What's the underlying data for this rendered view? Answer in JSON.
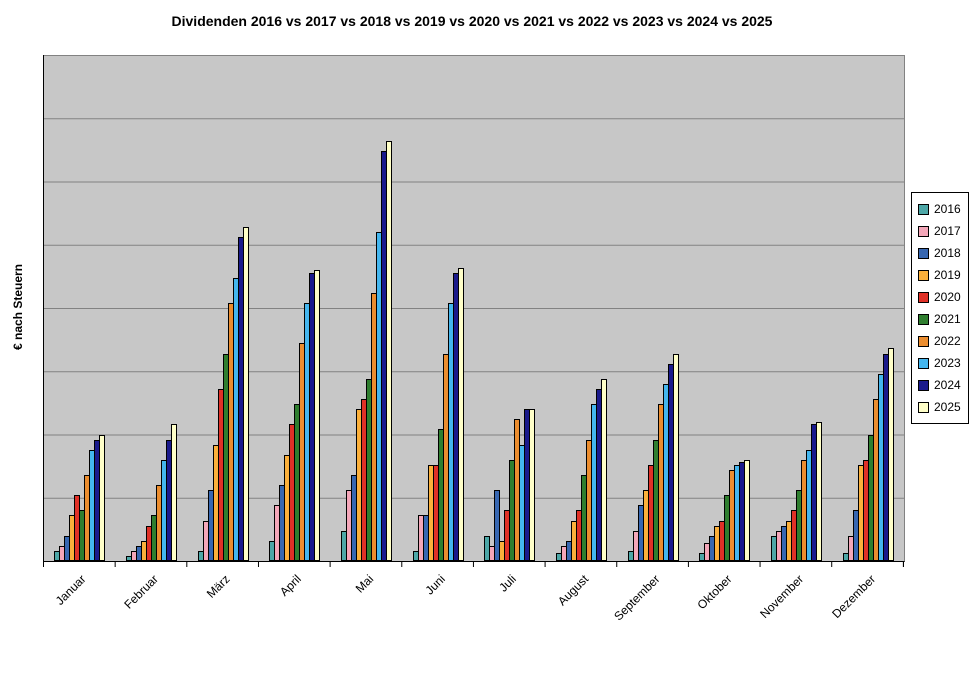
{
  "title": "Dividenden 2016 vs 2017 vs 2018 vs 2019 vs 2020 vs 2021 vs 2022 vs 2023 vs 2024 vs 2025",
  "y_axis_label": "€ nach Steuern",
  "chart_data": {
    "type": "bar",
    "title": "Dividenden 2016 vs 2017 vs 2018 vs 2019 vs 2020 vs 2021 vs 2022 vs 2023 vs 2024 vs 2025",
    "xlabel": "",
    "ylabel": "€ nach Steuern",
    "categories": [
      "Januar",
      "Februar",
      "März",
      "April",
      "Mai",
      "Juni",
      "Juli",
      "August",
      "September",
      "Oktober",
      "November",
      "Dezember"
    ],
    "series": [
      {
        "name": "2016",
        "color": "#4DA7A7",
        "values": [
          2,
          1,
          2,
          4,
          6,
          2,
          5,
          1.5,
          2,
          1.5,
          5,
          1.5
        ]
      },
      {
        "name": "2017",
        "color": "#F4A7B9",
        "values": [
          3,
          2,
          8,
          11,
          14,
          9,
          3,
          3,
          6,
          3.5,
          6,
          5
        ]
      },
      {
        "name": "2018",
        "color": "#3767B1",
        "values": [
          5,
          3,
          14,
          15,
          17,
          9,
          14,
          4,
          11,
          5,
          7,
          10
        ]
      },
      {
        "name": "2019",
        "color": "#FBB03B",
        "values": [
          9,
          4,
          23,
          21,
          30,
          19,
          4,
          8,
          14,
          7,
          8,
          19
        ]
      },
      {
        "name": "2020",
        "color": "#E03127",
        "values": [
          13,
          7,
          34,
          27,
          32,
          19,
          10,
          10,
          19,
          8,
          10,
          20
        ]
      },
      {
        "name": "2021",
        "color": "#2F7E2F",
        "values": [
          10,
          9,
          41,
          31,
          36,
          26,
          20,
          17,
          24,
          13,
          14,
          25
        ]
      },
      {
        "name": "2022",
        "color": "#EB8D2F",
        "values": [
          17,
          15,
          51,
          43,
          53,
          41,
          28,
          24,
          31,
          18,
          20,
          32
        ]
      },
      {
        "name": "2023",
        "color": "#44B6EE",
        "values": [
          22,
          20,
          56,
          51,
          65,
          51,
          23,
          31,
          35,
          19,
          22,
          37
        ]
      },
      {
        "name": "2024",
        "color": "#1A1A8C",
        "values": [
          24,
          24,
          64,
          57,
          81,
          57,
          30,
          34,
          39,
          19.5,
          27,
          41
        ]
      },
      {
        "name": "2025",
        "color": "#FFFFC8",
        "values": [
          25,
          27,
          66,
          57.5,
          83,
          58,
          30,
          36,
          41,
          20,
          27.5,
          42
        ]
      }
    ],
    "ylim": [
      0,
      100
    ],
    "y_tick_labels_visible": false,
    "gridline_count": 8,
    "grid": true,
    "legend_position": "right",
    "x_tick_rotation": 45,
    "plot_bg": "#C7C7C7",
    "gridline_color": "#828282",
    "page_bg": "#FFFFFF"
  }
}
